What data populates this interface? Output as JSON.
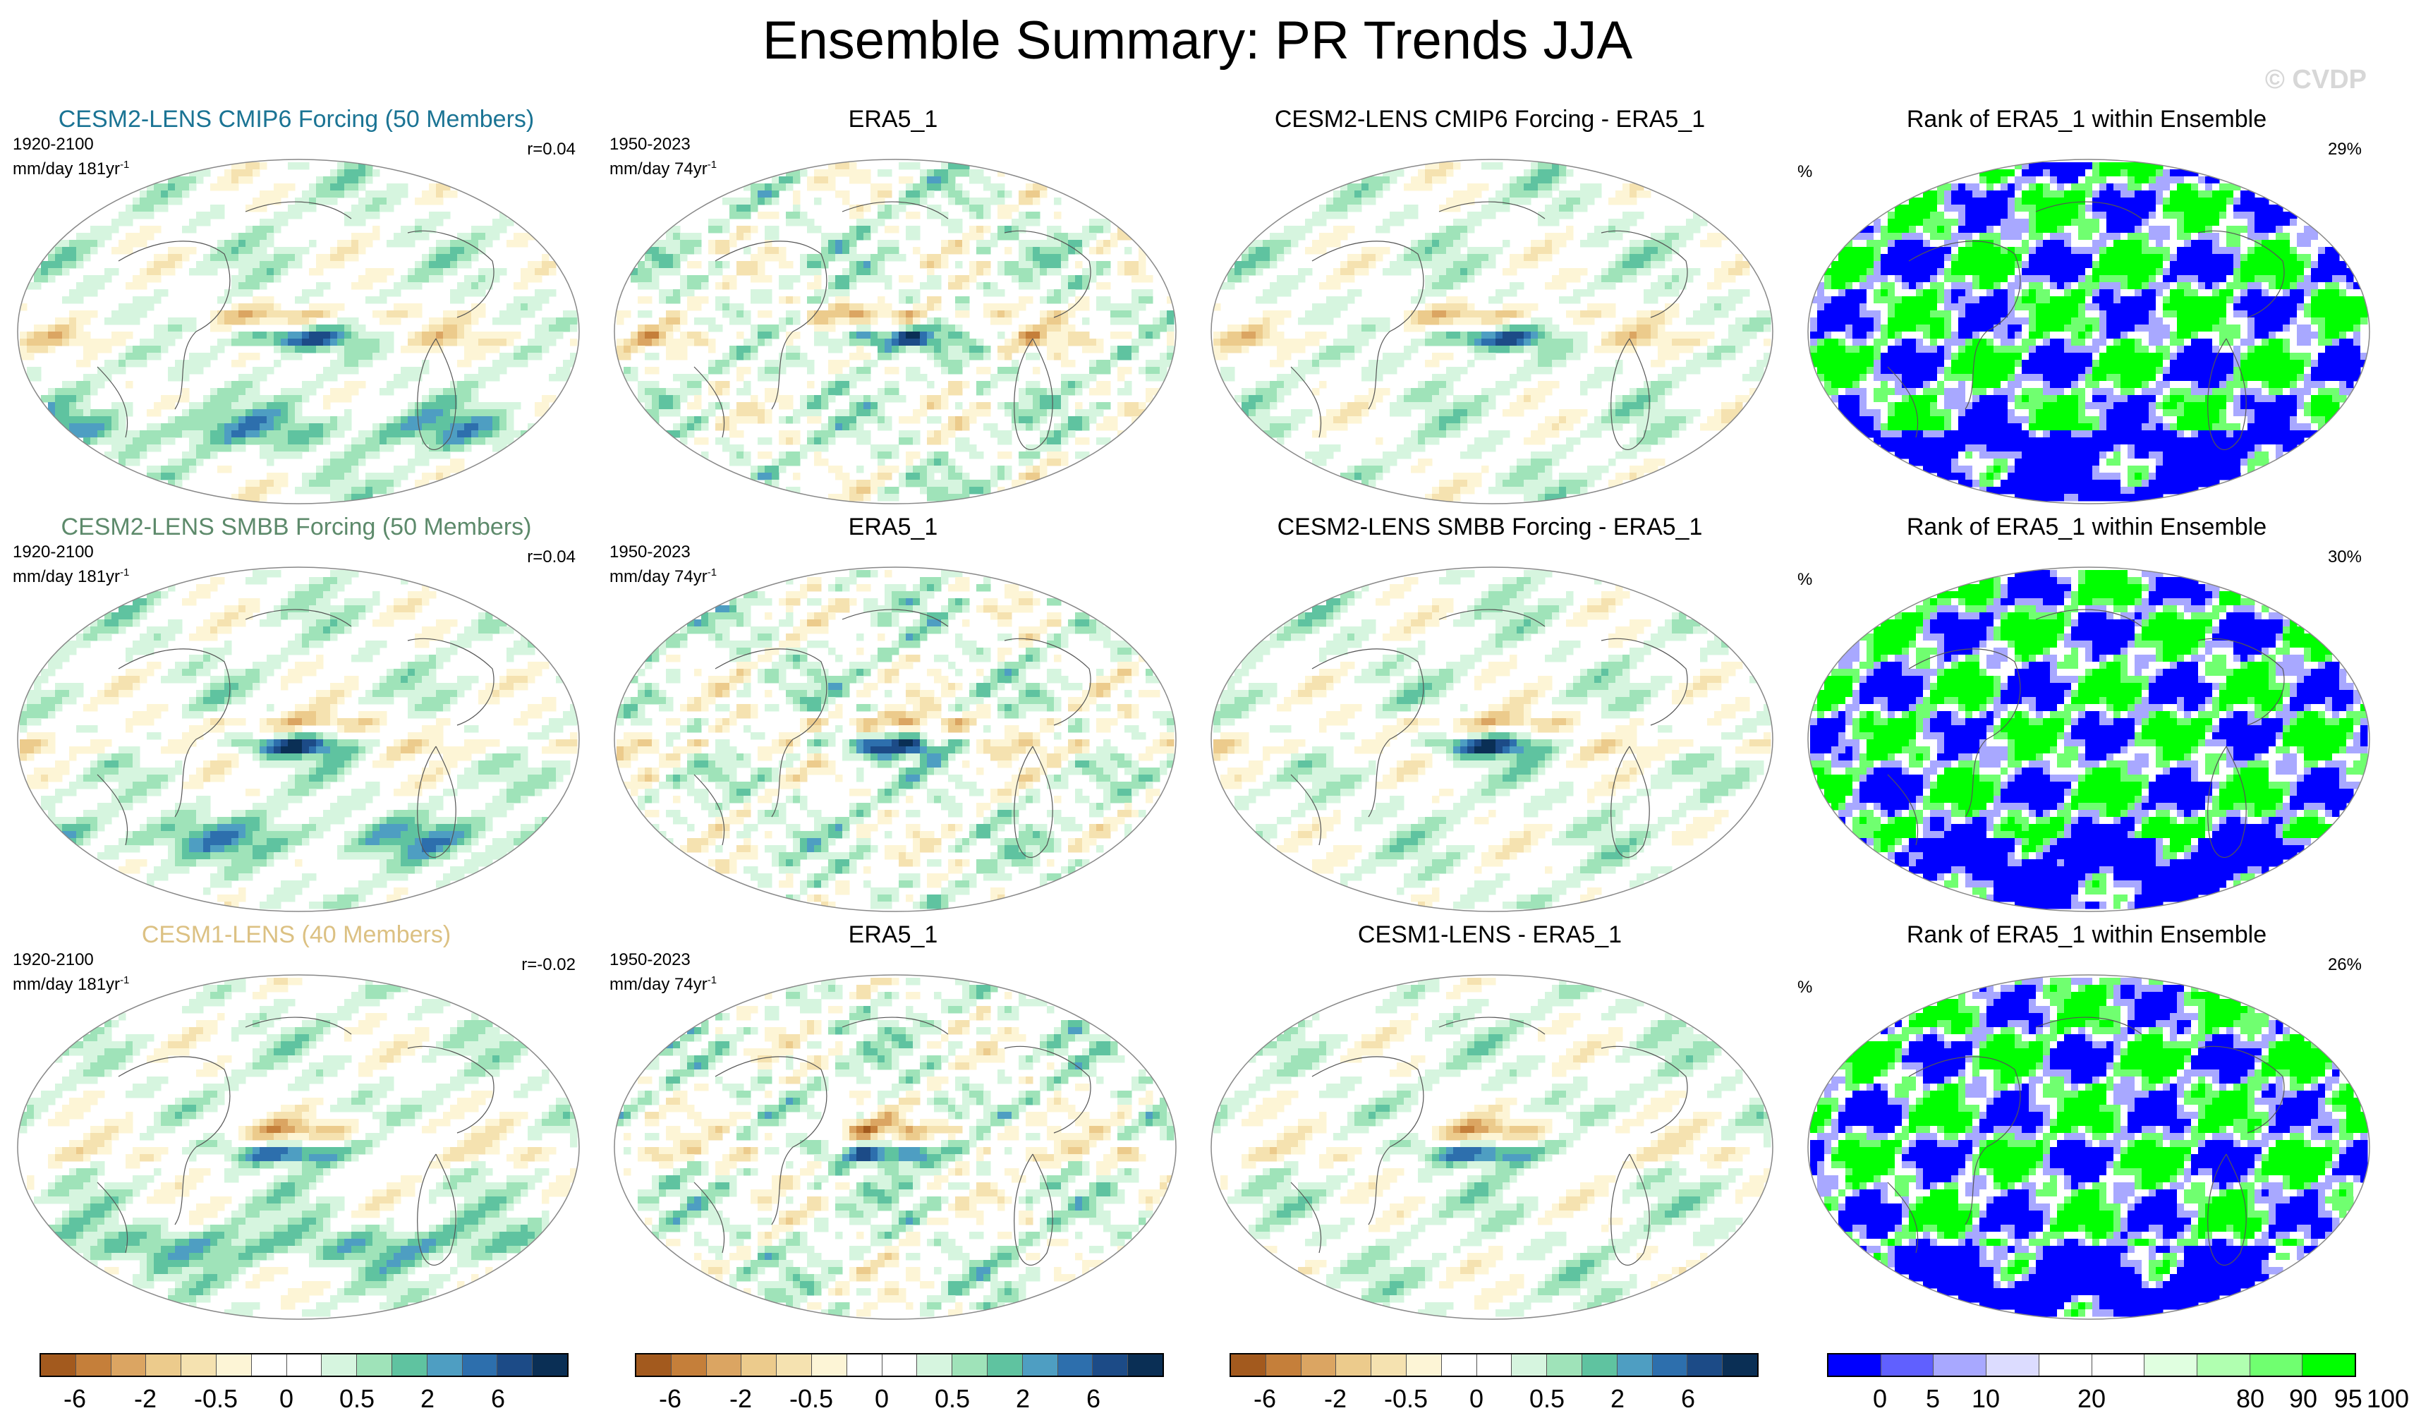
{
  "figure": {
    "title": "Ensemble Summary: PR Trends JJA",
    "watermark": "© CVDP"
  },
  "rows": [
    {
      "model": {
        "title": "CESM2-LENS CMIP6 Forcing (50 Members)",
        "period": "1920-2100",
        "units": "mm/day 181yr",
        "units_sup": "-1",
        "r": "r=0.04"
      },
      "obs": {
        "title": "ERA5_1",
        "period": "1950-2023",
        "units": "mm/day 74yr",
        "units_sup": "-1"
      },
      "diff": {
        "title": "CESM2-LENS CMIP6 Forcing - ERA5_1"
      },
      "rank": {
        "title": "Rank of ERA5_1 within Ensemble",
        "unit": "%",
        "pct": "29%"
      }
    },
    {
      "model": {
        "title": "CESM2-LENS SMBB Forcing (50 Members)",
        "period": "1920-2100",
        "units": "mm/day 181yr",
        "units_sup": "-1",
        "r": "r=0.04"
      },
      "obs": {
        "title": "ERA5_1",
        "period": "1950-2023",
        "units": "mm/day 74yr",
        "units_sup": "-1"
      },
      "diff": {
        "title": "CESM2-LENS SMBB Forcing - ERA5_1"
      },
      "rank": {
        "title": "Rank of ERA5_1 within Ensemble",
        "unit": "%",
        "pct": "30%"
      }
    },
    {
      "model": {
        "title": "CESM1-LENS (40 Members)",
        "period": "1920-2100",
        "units": "mm/day 181yr",
        "units_sup": "-1",
        "r": "r=-0.02"
      },
      "obs": {
        "title": "ERA5_1",
        "period": "1950-2023",
        "units": "mm/day 74yr",
        "units_sup": "-1"
      },
      "diff": {
        "title": "CESM1-LENS - ERA5_1"
      },
      "rank": {
        "title": "Rank of ERA5_1 within Ensemble",
        "unit": "%",
        "pct": "26%"
      }
    }
  ],
  "colorbars": {
    "trend": {
      "labels": [
        "-6",
        "-2",
        "-0.5",
        "0",
        "0.5",
        "2",
        "6"
      ],
      "colors": [
        "#a35a1e",
        "#c57f3a",
        "#dba562",
        "#eccb8c",
        "#f5e2b0",
        "#fdf5d6",
        "#ffffff",
        "#ffffff",
        "#d6f5df",
        "#9fe3b9",
        "#5fc3a0",
        "#4e9ec2",
        "#2d6fad",
        "#1c4b87",
        "#0a2f55"
      ]
    },
    "rank": {
      "labels": [
        "0",
        "5",
        "10",
        "20",
        "80",
        "90",
        "95",
        "100"
      ],
      "colors": [
        "#0000ff",
        "#6060ff",
        "#a8a8ff",
        "#dcdcff",
        "#ffffff",
        "#ffffff",
        "#e0ffe0",
        "#b0ffb0",
        "#70ff70",
        "#00ff00"
      ]
    }
  }
}
